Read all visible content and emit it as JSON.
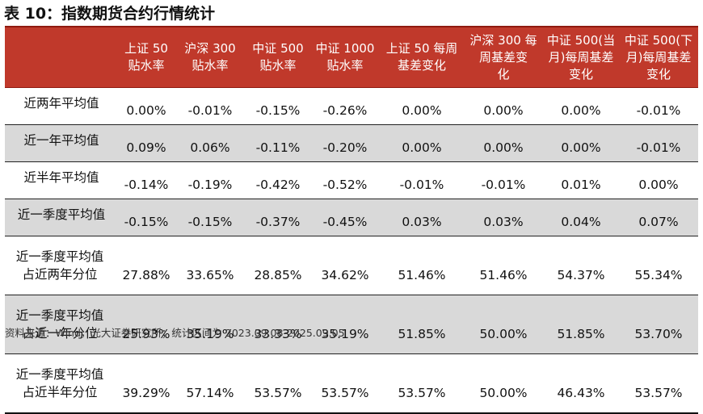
{
  "title": "表 10：指数期货合约行情统计",
  "table": {
    "headers": [
      [
        ""
      ],
      [
        "上证 50",
        "贴水率"
      ],
      [
        "沪深 300",
        "贴水率"
      ],
      [
        "中证 500",
        "贴水率"
      ],
      [
        "中证 1000",
        "贴水率"
      ],
      [
        "上证 50 每周",
        "基差变化"
      ],
      [
        "沪深 300 每",
        "周基差变",
        "化"
      ],
      [
        "中证 500(当",
        "月)每周基差",
        "变化"
      ],
      [
        "中证 500(下",
        "月)每周基差",
        "变化"
      ]
    ],
    "rows": [
      {
        "label": [
          "近两年平均值"
        ],
        "values": [
          "0.00%",
          "-0.01%",
          "-0.15%",
          "-0.26%",
          "0.00%",
          "0.00%",
          "0.00%",
          "-0.01%"
        ]
      },
      {
        "label": [
          "近一年平均值"
        ],
        "values": [
          "0.09%",
          "0.06%",
          "-0.11%",
          "-0.20%",
          "0.00%",
          "0.00%",
          "0.00%",
          "-0.01%"
        ]
      },
      {
        "label": [
          "近半年平均值"
        ],
        "values": [
          "-0.14%",
          "-0.19%",
          "-0.42%",
          "-0.52%",
          "-0.01%",
          "-0.01%",
          "0.01%",
          "0.00%"
        ]
      },
      {
        "label": [
          "近一季度平均值"
        ],
        "values": [
          "-0.15%",
          "-0.15%",
          "-0.37%",
          "-0.45%",
          "0.03%",
          "0.03%",
          "0.04%",
          "0.07%"
        ]
      },
      {
        "label": [
          "近一季度平均值",
          "占近两年分位"
        ],
        "values": [
          "27.88%",
          "33.65%",
          "28.85%",
          "34.62%",
          "51.46%",
          "51.46%",
          "54.37%",
          "55.34%"
        ]
      },
      {
        "label": [
          "近一季度平均值",
          "占近一年分位"
        ],
        "values": [
          "25.93%",
          "35.19%",
          "33.33%",
          "35.19%",
          "51.85%",
          "50.00%",
          "51.85%",
          "53.70%"
        ]
      },
      {
        "label": [
          "近一季度平均值",
          "占近半年分位"
        ],
        "values": [
          "39.29%",
          "57.14%",
          "53.57%",
          "53.57%",
          "53.57%",
          "50.00%",
          "46.43%",
          "53.57%"
        ]
      }
    ]
  },
  "footer": "资料来源：Wind，光大证券研究所；统计区间为 2023.09.08-2025.09.05",
  "colors": {
    "header_bg": "#c0392b",
    "header_text": "#ffffff",
    "shade_row": "#d9d9d9"
  }
}
